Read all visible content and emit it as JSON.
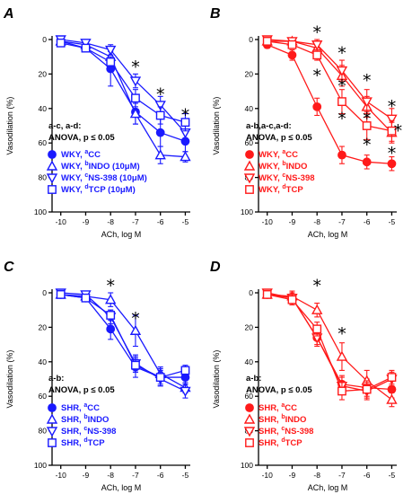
{
  "colors": {
    "blue": "#1a1aff",
    "red": "#ff1a1a",
    "black": "#000000"
  },
  "chart_data": [
    {
      "type": "line",
      "panel": "A",
      "color": "blue",
      "x": [
        -10,
        -9,
        -8,
        -7,
        -6,
        -5
      ],
      "xlabel": "ACh, log M",
      "ylabel": "Vasodilation (%)",
      "xticks": [
        "-10",
        "-9",
        "-8",
        "-7",
        "-6",
        "-5"
      ],
      "yticks": [
        "0",
        "20",
        "40",
        "60",
        "80",
        "100"
      ],
      "ylim": [
        0,
        100
      ],
      "y_inverted": true,
      "stats": [
        "a-c, a-d:",
        "ANOVA, p ≤ 0.05"
      ],
      "stars": [
        {
          "x": -7,
          "y": 14
        },
        {
          "x": -6,
          "y": 30
        },
        {
          "x": -5,
          "y": 42
        }
      ],
      "series": [
        {
          "name": "WKY, aCC",
          "base": "WKY, ",
          "sup": "a",
          "suffix": "CC",
          "marker": "circle",
          "filled": true,
          "values": [
            1,
            5,
            17,
            42,
            54,
            59
          ],
          "err": [
            2,
            2,
            10,
            7,
            8,
            6
          ]
        },
        {
          "name": "WKY, bINDO (10μM)",
          "base": "WKY, ",
          "sup": "b",
          "suffix": "INDO (10μM)",
          "marker": "triangle",
          "filled": false,
          "values": [
            1,
            3,
            10,
            43,
            67,
            68
          ],
          "err": [
            2,
            2,
            4,
            6,
            5,
            3
          ]
        },
        {
          "name": "WKY, cNS-398 (10μM)",
          "base": "WKY, ",
          "sup": "c",
          "suffix": "NS-398 (10μM)",
          "marker": "triangle-down",
          "filled": false,
          "values": [
            0,
            2,
            6,
            24,
            38,
            54
          ],
          "err": [
            2,
            2,
            3,
            4,
            5,
            5
          ]
        },
        {
          "name": "WKY, dTCP (10μM)",
          "base": "WKY, ",
          "sup": "d",
          "suffix": "TCP (10μM)",
          "marker": "square",
          "filled": false,
          "values": [
            2,
            5,
            13,
            34,
            44,
            48
          ],
          "err": [
            2,
            2,
            3,
            5,
            5,
            5
          ]
        }
      ]
    },
    {
      "type": "line",
      "panel": "B",
      "color": "red",
      "x": [
        -10,
        -9,
        -8,
        -7,
        -6,
        -5
      ],
      "xlabel": "ACh, log M",
      "ylabel": "Vasodilation (%)",
      "xticks": [
        "-10",
        "-9",
        "-8",
        "-7",
        "-6",
        "-5"
      ],
      "yticks": [
        "0",
        "20",
        "40",
        "60",
        "80",
        "100"
      ],
      "ylim": [
        0,
        100
      ],
      "y_inverted": true,
      "stats": [
        "a-b,a-c,a-d:",
        "ANOVA, p ≤ 0.05"
      ],
      "stars": [
        {
          "x": -8,
          "y": -6
        },
        {
          "x": -8,
          "y": 19
        },
        {
          "x": -7,
          "y": 6
        },
        {
          "x": -7,
          "y": 25
        },
        {
          "x": -7,
          "y": 44
        },
        {
          "x": -6,
          "y": 22
        },
        {
          "x": -6,
          "y": 44
        },
        {
          "x": -6,
          "y": 59
        },
        {
          "x": -5,
          "y": 37
        },
        {
          "x": -5,
          "y": 64
        },
        {
          "x": -4.75,
          "y": 51
        }
      ],
      "series": [
        {
          "name": "WKY, aCC",
          "base": "WKY, ",
          "sup": "a",
          "suffix": "CC",
          "marker": "circle",
          "filled": true,
          "values": [
            3,
            9,
            39,
            67,
            71,
            72
          ],
          "err": [
            2,
            3,
            5,
            5,
            4,
            4
          ]
        },
        {
          "name": "WKY, bINDO",
          "base": "WKY, ",
          "sup": "b",
          "suffix": "INDO",
          "marker": "triangle",
          "filled": false,
          "values": [
            1,
            1,
            5,
            21,
            39,
            54
          ],
          "err": [
            2,
            2,
            3,
            6,
            6,
            6
          ]
        },
        {
          "name": "WKY, cNS-398",
          "base": "WKY, ",
          "sup": "c",
          "suffix": "NS-398",
          "marker": "triangle-down",
          "filled": false,
          "values": [
            0,
            1,
            3,
            18,
            36,
            46
          ],
          "err": [
            2,
            2,
            3,
            6,
            7,
            6
          ]
        },
        {
          "name": "WKY, dTCP",
          "base": "WKY, ",
          "sup": "d",
          "suffix": "TCP",
          "marker": "square",
          "filled": false,
          "values": [
            1,
            3,
            9,
            36,
            50,
            53
          ],
          "err": [
            2,
            2,
            3,
            7,
            8,
            6
          ]
        }
      ]
    },
    {
      "type": "line",
      "panel": "C",
      "color": "blue",
      "x": [
        -10,
        -9,
        -8,
        -7,
        -6,
        -5
      ],
      "xlabel": "ACh, log M",
      "ylabel": "Vasodilation (%)",
      "xticks": [
        "-10",
        "-9",
        "-8",
        "-7",
        "-6",
        "-5"
      ],
      "yticks": [
        "0",
        "20",
        "40",
        "60",
        "80",
        "100"
      ],
      "ylim": [
        0,
        100
      ],
      "y_inverted": true,
      "stats": [
        "a-b:",
        "ANOVA, p ≤ 0.05"
      ],
      "stars": [
        {
          "x": -8,
          "y": -6
        },
        {
          "x": -7,
          "y": 13
        }
      ],
      "series": [
        {
          "name": "SHR, aCC",
          "base": "SHR, ",
          "sup": "a",
          "suffix": "CC",
          "marker": "circle",
          "filled": true,
          "values": [
            1,
            3,
            21,
            43,
            49,
            49
          ],
          "err": [
            2,
            2,
            6,
            6,
            5,
            4
          ]
        },
        {
          "name": "SHR, bINDO",
          "base": "SHR, ",
          "sup": "b",
          "suffix": "INDO",
          "marker": "triangle",
          "filled": false,
          "values": [
            1,
            2,
            4,
            22,
            47,
            55
          ],
          "err": [
            2,
            2,
            4,
            9,
            4,
            3
          ]
        },
        {
          "name": "SHR, cNS-398",
          "base": "SHR, ",
          "sup": "c",
          "suffix": "NS-398",
          "marker": "triangle-down",
          "filled": false,
          "values": [
            0,
            1,
            14,
            41,
            50,
            57
          ],
          "err": [
            2,
            2,
            4,
            5,
            4,
            4
          ]
        },
        {
          "name": "SHR, dTCP",
          "base": "SHR, ",
          "sup": "d",
          "suffix": "TCP",
          "marker": "square",
          "filled": false,
          "values": [
            1,
            3,
            13,
            42,
            49,
            45
          ],
          "err": [
            2,
            2,
            3,
            4,
            4,
            3
          ]
        }
      ]
    },
    {
      "type": "line",
      "panel": "D",
      "color": "red",
      "x": [
        -10,
        -9,
        -8,
        -7,
        -6,
        -5
      ],
      "xlabel": "ACh, log M",
      "ylabel": "Vasodilation (%)",
      "xticks": [
        "-10",
        "-9",
        "-8",
        "-7",
        "-6",
        "-5"
      ],
      "yticks": [
        "0",
        "20",
        "40",
        "60",
        "80",
        "100"
      ],
      "ylim": [
        0,
        100
      ],
      "y_inverted": true,
      "stats": [
        "a-b:",
        "ANOVA, p ≤ 0.05"
      ],
      "stars": [
        {
          "x": -8,
          "y": -6
        },
        {
          "x": -7,
          "y": 22
        }
      ],
      "series": [
        {
          "name": "SHR, aCC",
          "base": "SHR, ",
          "sup": "a",
          "suffix": "CC",
          "marker": "circle",
          "filled": true,
          "values": [
            1,
            3,
            26,
            53,
            55,
            56
          ],
          "err": [
            2,
            3,
            4,
            5,
            5,
            5
          ]
        },
        {
          "name": "SHR, bINDO",
          "base": "SHR, ",
          "sup": "b",
          "suffix": "INDO",
          "marker": "triangle",
          "filled": false,
          "values": [
            1,
            2,
            10,
            37,
            51,
            62
          ],
          "err": [
            2,
            2,
            4,
            8,
            6,
            4
          ]
        },
        {
          "name": "SHR, cNS-398",
          "base": "SHR, ",
          "sup": "c",
          "suffix": "NS-398",
          "marker": "triangle-down",
          "filled": false,
          "values": [
            0,
            3,
            26,
            54,
            57,
            50
          ],
          "err": [
            2,
            4,
            5,
            5,
            5,
            4
          ]
        },
        {
          "name": "SHR, dTCP",
          "base": "SHR, ",
          "sup": "d",
          "suffix": "TCP",
          "marker": "square",
          "filled": false,
          "values": [
            1,
            4,
            21,
            57,
            56,
            49
          ],
          "err": [
            2,
            3,
            4,
            5,
            5,
            4
          ]
        }
      ]
    }
  ]
}
